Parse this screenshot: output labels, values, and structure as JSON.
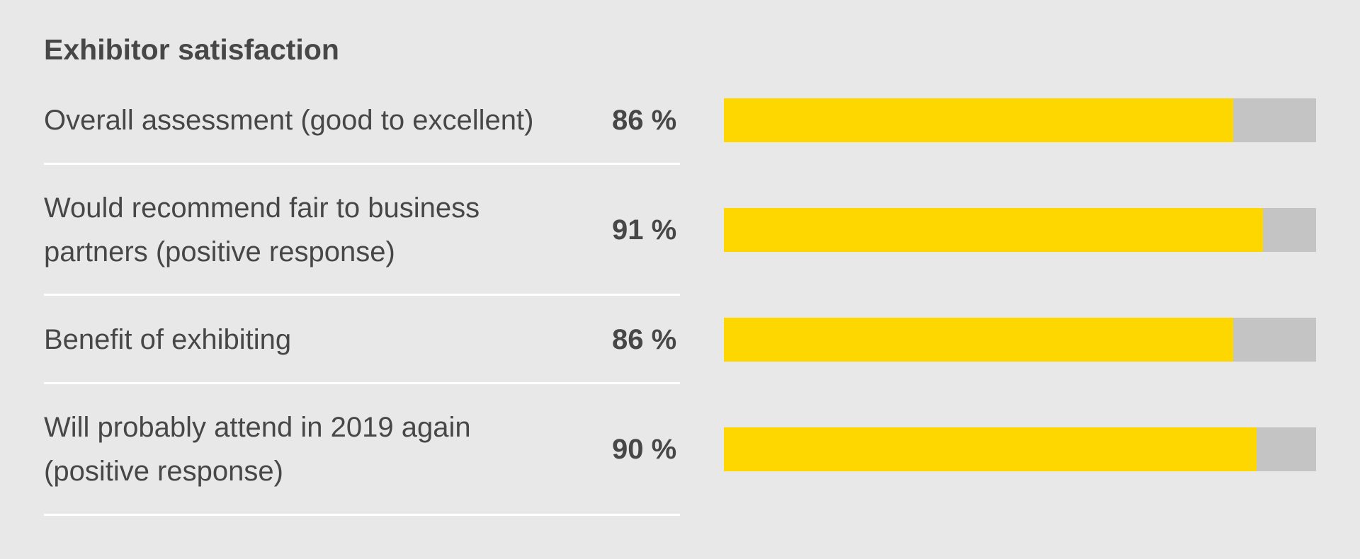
{
  "chart_data": {
    "type": "bar",
    "title": "Exhibitor satisfaction",
    "categories": [
      "Overall assessment (good to excellent)",
      "Would recommend fair to business partners (positive response)",
      "Benefit of exhibiting",
      "Will probably attend in 2019 again (positive response)"
    ],
    "values": [
      86,
      91,
      86,
      90
    ],
    "value_labels": [
      "86 %",
      "91 %",
      "86 %",
      "90 %"
    ],
    "xlim": [
      0,
      100
    ],
    "orientation": "horizontal",
    "grid": false,
    "colors": {
      "bar": "#fed700",
      "track": "#c4c4c4",
      "background": "#e8e8e8",
      "divider": "#ffffff",
      "text": "#474747"
    }
  },
  "rows": [
    {
      "label_lines": [
        "Overall assessment (good to excellent)"
      ],
      "value_label": "86 %"
    },
    {
      "label_lines": [
        "Would recommend fair to business",
        "partners (positive response)"
      ],
      "value_label": "91 %"
    },
    {
      "label_lines": [
        "Benefit of exhibiting"
      ],
      "value_label": "86 %"
    },
    {
      "label_lines": [
        "Will probably attend in 2019 again",
        "(positive response)"
      ],
      "value_label": "90 %"
    }
  ]
}
